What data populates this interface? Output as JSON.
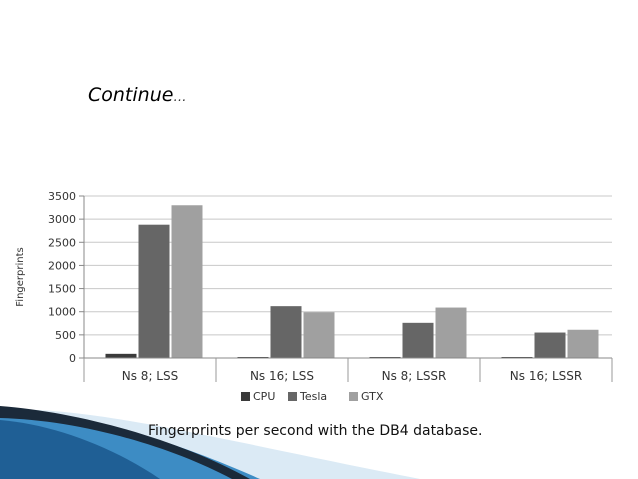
{
  "slide": {
    "title": "Continue",
    "title_suffix": "…",
    "caption": "Fingerprints per second with the DB4 database."
  },
  "colors": {
    "cpu": "#3a3a3a",
    "tesla": "#666666",
    "gtx": "#a0a0a0",
    "grid": "#c8c8c8",
    "swoosh_dark": "#1b2a3a",
    "swoosh_blue": "#2f7fb7",
    "swoosh_light": "#cfe3f2"
  },
  "chart_data": {
    "type": "bar",
    "title": "",
    "xlabel": "",
    "ylabel": "Fingerprints",
    "ylim": [
      0,
      3500
    ],
    "yticks": [
      0,
      500,
      1000,
      1500,
      2000,
      2500,
      3000,
      3500
    ],
    "grid": true,
    "legend_position": "bottom",
    "categories": [
      "Ns 8; LSS",
      "Ns 16; LSS",
      "Ns 8; LSSR",
      "Ns 16; LSSR"
    ],
    "series": [
      {
        "name": "CPU",
        "values": [
          90,
          15,
          10,
          5
        ]
      },
      {
        "name": "Tesla",
        "values": [
          2880,
          1120,
          760,
          550
        ]
      },
      {
        "name": "GTX",
        "values": [
          3300,
          990,
          1090,
          610
        ]
      }
    ]
  }
}
